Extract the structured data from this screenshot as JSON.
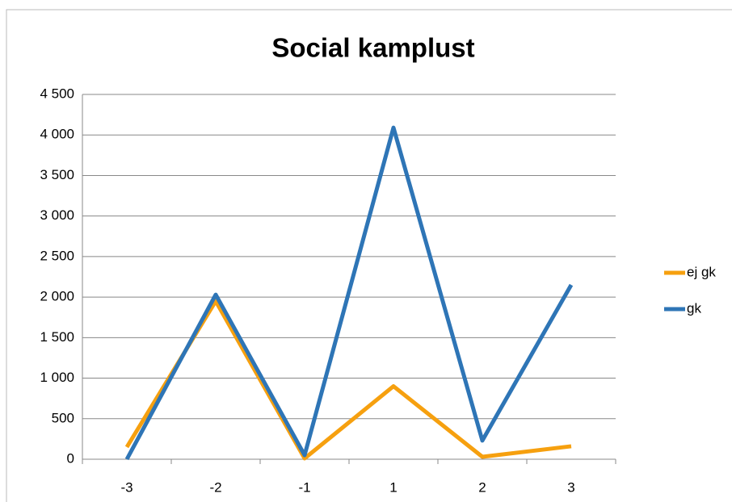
{
  "chart_data": {
    "type": "line",
    "title": "Social kamplust",
    "categories": [
      "-3",
      "-2",
      "-1",
      "1",
      "2",
      "3"
    ],
    "series": [
      {
        "name": "ej gk",
        "color": "#f6a00f",
        "values": [
          150,
          1950,
          10,
          900,
          30,
          160
        ]
      },
      {
        "name": "gk",
        "color": "#2e75b6",
        "values": [
          0,
          2030,
          50,
          4090,
          230,
          2150
        ]
      }
    ],
    "ylim": [
      0,
      4500
    ],
    "yticks": [
      0,
      500,
      {
        "value": 1000,
        "label": "1 000"
      },
      {
        "value": 1500,
        "label": "1 500"
      },
      {
        "value": 2000,
        "label": "2 000"
      },
      {
        "value": 2500,
        "label": "2 500"
      },
      {
        "value": 3000,
        "label": "3 000"
      },
      {
        "value": 3500,
        "label": "3 500"
      },
      {
        "value": 4000,
        "label": "4 000"
      },
      {
        "value": 4500,
        "label": "4 500"
      }
    ],
    "grid": true,
    "legend": "right"
  }
}
